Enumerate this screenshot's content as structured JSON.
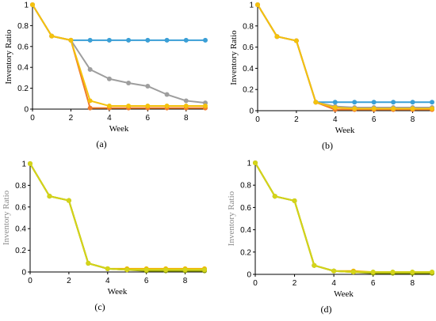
{
  "chart_data": [
    {
      "type": "line",
      "panel_label": "(a)",
      "xlabel": "Week",
      "ylabel": "Inventory Ratio",
      "xlim": [
        0,
        9
      ],
      "ylim": [
        0,
        1
      ],
      "x_ticks": [
        "0",
        "2",
        "4",
        "6",
        "8"
      ],
      "y_ticks": [
        "0",
        "0.2",
        "0.4",
        "0.6",
        "0.8",
        "1"
      ],
      "series": [
        {
          "color": "#3a9fd6",
          "x": [
            0,
            1,
            2,
            3,
            4,
            5,
            6,
            7,
            8,
            9
          ],
          "y": [
            1,
            0.7,
            0.66,
            0.66,
            0.66,
            0.66,
            0.66,
            0.66,
            0.66,
            0.66
          ]
        },
        {
          "color": "#9e9e9e",
          "x": [
            0,
            1,
            2,
            3,
            4,
            5,
            6,
            7,
            8,
            9
          ],
          "y": [
            1,
            0.7,
            0.66,
            0.38,
            0.29,
            0.25,
            0.22,
            0.14,
            0.08,
            0.06
          ]
        },
        {
          "color": "#f07c2a",
          "x": [
            0,
            1,
            2,
            3,
            4,
            5,
            6,
            7,
            8,
            9
          ],
          "y": [
            1,
            0.7,
            0.66,
            0.01,
            0.01,
            0.01,
            0.01,
            0.01,
            0.01,
            0.01
          ]
        },
        {
          "color": "#f4c20d",
          "x": [
            0,
            1,
            2,
            3,
            4,
            5,
            6,
            7,
            8,
            9
          ],
          "y": [
            1,
            0.7,
            0.66,
            0.08,
            0.03,
            0.03,
            0.03,
            0.03,
            0.03,
            0.03
          ]
        }
      ]
    },
    {
      "type": "line",
      "panel_label": "(b)",
      "xlabel": "Week",
      "ylabel": "Inventory Ratio",
      "xlim": [
        0,
        9
      ],
      "ylim": [
        0,
        1
      ],
      "x_ticks": [
        "0",
        "2",
        "4",
        "6",
        "8"
      ],
      "y_ticks": [
        "0",
        "0.2",
        "0.4",
        "0.6",
        "0.8",
        "1"
      ],
      "series": [
        {
          "color": "#3a9fd6",
          "x": [
            0,
            1,
            2,
            3,
            4,
            5,
            6,
            7,
            8,
            9
          ],
          "y": [
            1,
            0.7,
            0.66,
            0.08,
            0.08,
            0.08,
            0.08,
            0.08,
            0.08,
            0.08
          ]
        },
        {
          "color": "#9e9e9e",
          "x": [
            0,
            1,
            2,
            3,
            4,
            5,
            6,
            7,
            8,
            9
          ],
          "y": [
            1,
            0.7,
            0.66,
            0.08,
            0.04,
            0.03,
            0.03,
            0.03,
            0.03,
            0.03
          ]
        },
        {
          "color": "#f07c2a",
          "x": [
            0,
            1,
            2,
            3,
            4,
            5,
            6,
            7,
            8,
            9
          ],
          "y": [
            1,
            0.7,
            0.66,
            0.08,
            0.01,
            0.01,
            0.01,
            0.01,
            0.01,
            0.01
          ]
        },
        {
          "color": "#f4c20d",
          "x": [
            0,
            1,
            2,
            3,
            4,
            5,
            6,
            7,
            8,
            9
          ],
          "y": [
            1,
            0.7,
            0.66,
            0.08,
            0.03,
            0.02,
            0.02,
            0.02,
            0.02,
            0.02
          ]
        }
      ]
    },
    {
      "type": "line",
      "panel_label": "(c)",
      "xlabel": "Week",
      "ylabel": "Inventory Ratio",
      "xlim": [
        0,
        9
      ],
      "ylim": [
        0,
        1
      ],
      "x_ticks": [
        "0",
        "2",
        "4",
        "6",
        "8"
      ],
      "y_ticks": [
        "0",
        "0.2",
        "0.4",
        "0.6",
        "0.8",
        "1"
      ],
      "series": [
        {
          "color": "#f4b400",
          "x": [
            0,
            1,
            2,
            3,
            4,
            5,
            6,
            7,
            8,
            9
          ],
          "y": [
            1,
            0.7,
            0.66,
            0.08,
            0.03,
            0.03,
            0.03,
            0.03,
            0.03,
            0.03
          ]
        },
        {
          "color": "#b5c90a",
          "x": [
            0,
            1,
            2,
            3,
            4,
            5,
            6,
            7,
            8,
            9
          ],
          "y": [
            1,
            0.7,
            0.66,
            0.08,
            0.03,
            0.02,
            0.02,
            0.02,
            0.02,
            0.02
          ]
        },
        {
          "color": "#8a9a0a",
          "x": [
            0,
            1,
            2,
            3,
            4,
            5,
            6,
            7,
            8,
            9
          ],
          "y": [
            1,
            0.7,
            0.66,
            0.08,
            0.03,
            0.02,
            0.01,
            0.01,
            0.01,
            0.01
          ]
        },
        {
          "color": "#d4d41a",
          "x": [
            0,
            1,
            2,
            3,
            4,
            5,
            6,
            7,
            8,
            9
          ],
          "y": [
            1,
            0.7,
            0.66,
            0.08,
            0.03,
            0.02,
            0.02,
            0.02,
            0.02,
            0.02
          ]
        }
      ]
    },
    {
      "type": "line",
      "panel_label": "(d)",
      "xlabel": "Week",
      "ylabel": "Inventory Ratio",
      "xlim": [
        0,
        9
      ],
      "ylim": [
        0,
        1
      ],
      "x_ticks": [
        "0",
        "2",
        "4",
        "6",
        "8"
      ],
      "y_ticks": [
        "0",
        "0.2",
        "0.4",
        "0.6",
        "0.8",
        "1"
      ],
      "series": [
        {
          "color": "#f4b400",
          "x": [
            0,
            1,
            2,
            3,
            4,
            5,
            6,
            7,
            8,
            9
          ],
          "y": [
            1,
            0.7,
            0.66,
            0.08,
            0.03,
            0.03,
            0.02,
            0.02,
            0.02,
            0.02
          ]
        },
        {
          "color": "#b5c90a",
          "x": [
            0,
            1,
            2,
            3,
            4,
            5,
            6,
            7,
            8,
            9
          ],
          "y": [
            1,
            0.7,
            0.66,
            0.08,
            0.03,
            0.02,
            0.02,
            0.02,
            0.02,
            0.02
          ]
        },
        {
          "color": "#8a9a0a",
          "x": [
            0,
            1,
            2,
            3,
            4,
            5,
            6,
            7,
            8,
            9
          ],
          "y": [
            1,
            0.7,
            0.66,
            0.08,
            0.03,
            0.02,
            0.01,
            0.01,
            0.01,
            0.01
          ]
        },
        {
          "color": "#d4d41a",
          "x": [
            0,
            1,
            2,
            3,
            4,
            5,
            6,
            7,
            8,
            9
          ],
          "y": [
            1,
            0.7,
            0.66,
            0.08,
            0.03,
            0.02,
            0.02,
            0.02,
            0.02,
            0.02
          ]
        }
      ]
    }
  ]
}
